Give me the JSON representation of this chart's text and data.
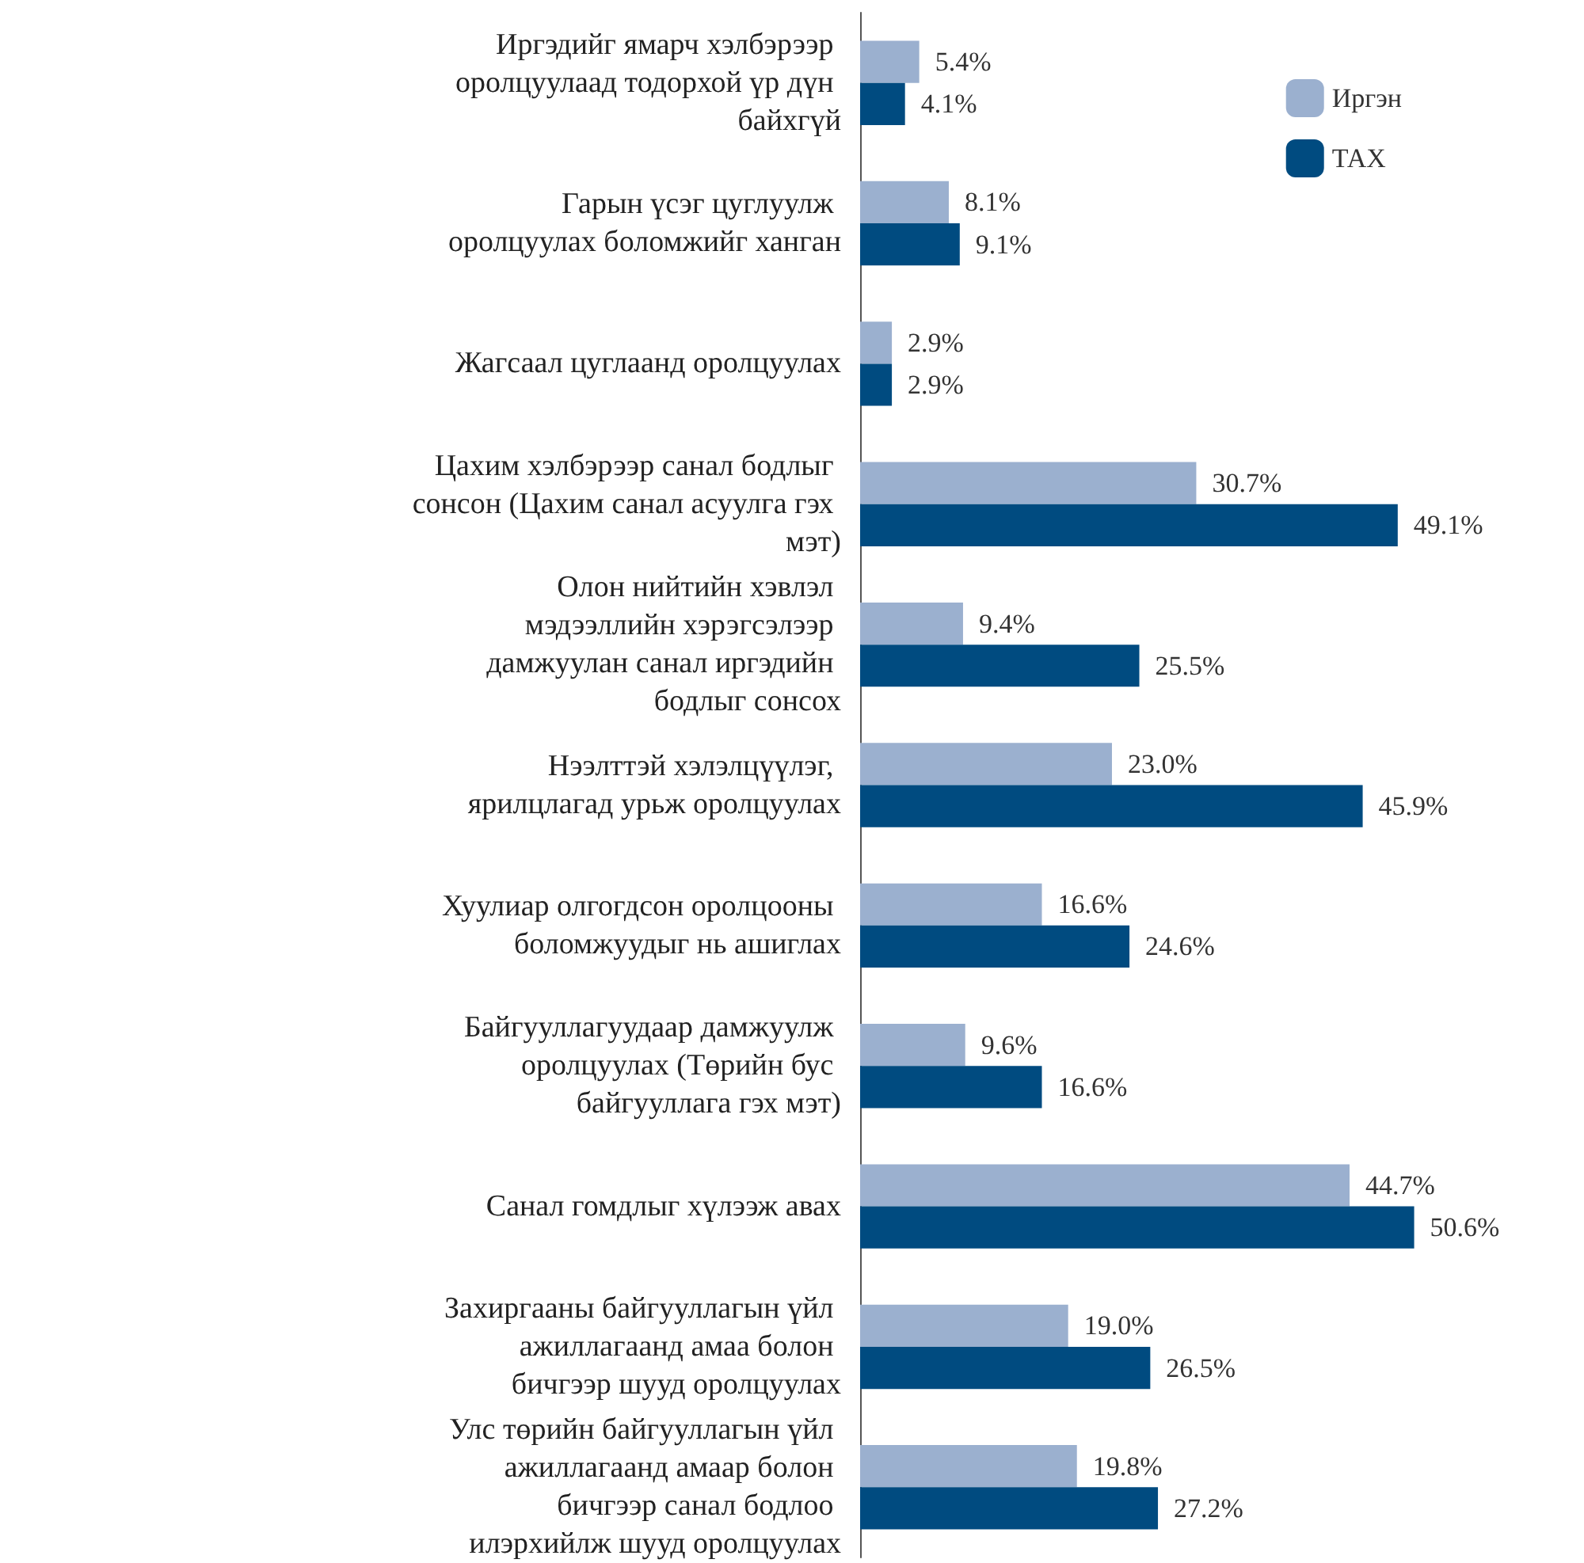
{
  "chart_data": {
    "type": "bar",
    "orientation": "horizontal",
    "categories": [
      "Иргэдийг ямарч хэлбэрээр оролцуулаад тодорхой үр дүн байхгүй",
      "Гарын үсэг цуглуулж оролцуулах боломжийг ханган",
      "Жагсаал цуглаанд оролцуулах",
      "Цахим хэлбэрээр санал бодлыг сонсон (Цахим санал асуулга гэх мэт)",
      "Олон нийтийн хэвлэл мэдээллийн хэрэгсэлээр дамжуулан санал иргэдийн бодлыг сонсох",
      "Нээлттэй хэлэлцүүлэг, ярилцлагад урьж оролцуулах",
      "Хуулиар олгогдсон оролцооны боломжуудыг нь ашиглах",
      "Байгууллагуудаар дамжуулж оролцуулах (Төрийн бус байгууллага гэх мэт)",
      "Санал гомдлыг хүлээж авах",
      "Захиргааны байгууллагын үйл ажиллагаанд амаа болон бичгээр шууд оролцуулах",
      "Улс төрийн байгууллагын үйл ажиллагаанд амаар болон бичгээр санал бодлоо илэрхийлж шууд оролцуулах"
    ],
    "series": [
      {
        "name": "Иргэн",
        "color": "#9bb0cf",
        "values": [
          5.4,
          8.1,
          2.9,
          30.7,
          9.4,
          23.0,
          16.6,
          9.6,
          44.7,
          19.0,
          19.8
        ],
        "value_labels": [
          "5.4%",
          "8.1%",
          "2.9%",
          "30.7%",
          "9.4%",
          "23.0%",
          "16.6%",
          "9.6%",
          "44.7%",
          "19.0%",
          "19.8%"
        ]
      },
      {
        "name": "ТАХ",
        "color": "#004b80",
        "values": [
          4.1,
          9.1,
          2.9,
          49.1,
          25.5,
          45.9,
          24.6,
          16.6,
          50.6,
          26.5,
          27.2
        ],
        "value_labels": [
          "4.1%",
          "9.1%",
          "2.9%",
          "49.1%",
          "25.5%",
          "45.9%",
          "24.6%",
          "16.6%",
          "50.6%",
          "26.5%",
          "27.2%"
        ]
      }
    ],
    "legend": "top right"
  }
}
